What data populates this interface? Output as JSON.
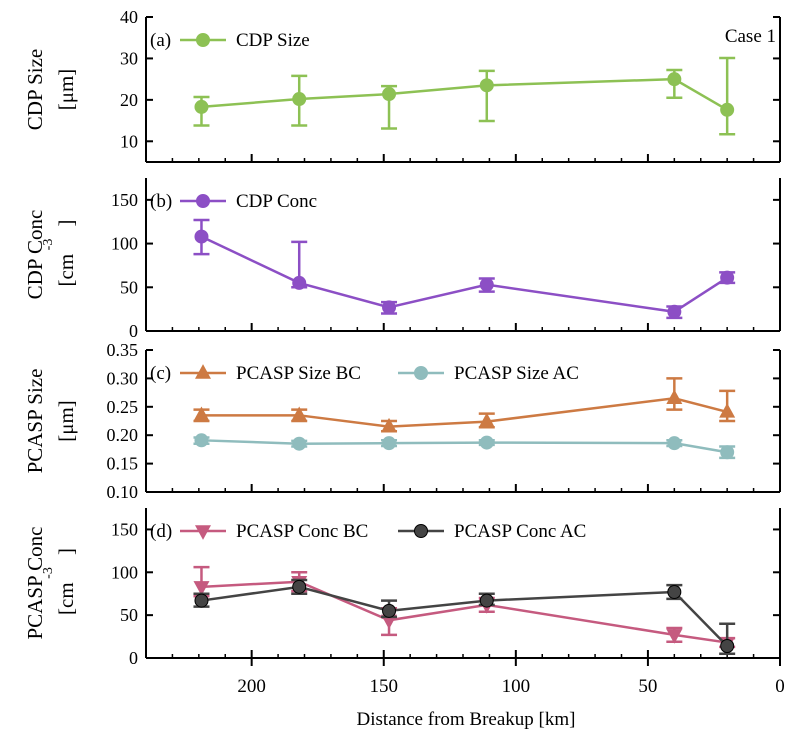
{
  "figure": {
    "case_label": "Case 1",
    "xlabel": "Distance from Breakup [km]",
    "x_ticks": [
      200,
      150,
      100,
      50,
      0
    ],
    "xlim": [
      240,
      0
    ]
  },
  "chart_data": [
    {
      "type": "line",
      "panel": "(a)",
      "ylabel_lines": [
        "CDP Size",
        "[μm]"
      ],
      "ylim": [
        5,
        40
      ],
      "y_ticks": [
        10,
        20,
        30,
        40
      ],
      "y_tick_labels": [
        "10",
        "20",
        "30",
        "40"
      ],
      "x": [
        219,
        182,
        148,
        111,
        40,
        20
      ],
      "series": [
        {
          "name": "CDP Size",
          "color": "#8dc154",
          "marker": "circle",
          "values": [
            18.3,
            20.2,
            21.4,
            23.5,
            25.0,
            17.6
          ],
          "err_low": [
            13.8,
            13.8,
            13.1,
            14.9,
            20.5,
            11.7
          ],
          "err_high": [
            20.7,
            25.8,
            23.3,
            27.0,
            27.2,
            30.1
          ]
        }
      ]
    },
    {
      "type": "line",
      "panel": "(b)",
      "ylabel_lines": [
        "CDP Conc",
        "[cm",
        "-3",
        "]"
      ],
      "ylim": [
        0,
        175
      ],
      "y_ticks": [
        0,
        50,
        100,
        150
      ],
      "y_tick_labels": [
        "0",
        "50",
        "100",
        "150"
      ],
      "x": [
        219,
        182,
        148,
        111,
        40,
        20
      ],
      "series": [
        {
          "name": "CDP Conc",
          "color": "#8c4fc5",
          "marker": "circle",
          "values": [
            108,
            55,
            27,
            53,
            22,
            61
          ],
          "err_low": [
            88,
            50,
            20,
            45,
            15,
            55
          ],
          "err_high": [
            127,
            102,
            33,
            60,
            28,
            67
          ]
        }
      ]
    },
    {
      "type": "line",
      "panel": "(c)",
      "ylabel_lines": [
        "PCASP Size",
        "[μm]"
      ],
      "ylim": [
        0.1,
        0.35
      ],
      "y_ticks": [
        0.1,
        0.15,
        0.2,
        0.25,
        0.3,
        0.35
      ],
      "y_tick_labels": [
        "0.10",
        "0.15",
        "0.20",
        "0.25",
        "0.30",
        "0.35"
      ],
      "x": [
        219,
        182,
        148,
        111,
        40,
        20
      ],
      "series": [
        {
          "name": "PCASP Size BC",
          "color": "#cd7a43",
          "marker": "triangle-up",
          "values": [
            0.235,
            0.235,
            0.215,
            0.224,
            0.265,
            0.241
          ],
          "err_low": [
            0.225,
            0.225,
            0.207,
            0.214,
            0.245,
            0.225
          ],
          "err_high": [
            0.245,
            0.245,
            0.225,
            0.238,
            0.3,
            0.278
          ]
        },
        {
          "name": "PCASP Size AC",
          "color": "#8fbcbd",
          "marker": "circle",
          "values": [
            0.191,
            0.185,
            0.186,
            0.187,
            0.186,
            0.17
          ],
          "err_low": [
            0.185,
            0.18,
            0.181,
            0.183,
            0.181,
            0.16
          ],
          "err_high": [
            0.196,
            0.19,
            0.191,
            0.191,
            0.191,
            0.18
          ]
        }
      ]
    },
    {
      "type": "line",
      "panel": "(d)",
      "ylabel_lines": [
        "PCASP Conc",
        "[cm",
        "-3",
        "]"
      ],
      "ylim": [
        0,
        175
      ],
      "y_ticks": [
        0,
        50,
        100,
        150
      ],
      "y_tick_labels": [
        "0",
        "50",
        "100",
        "150"
      ],
      "x": [
        219,
        182,
        148,
        111,
        40,
        20
      ],
      "series": [
        {
          "name": "PCASP Conc BC",
          "color": "#c55a7f",
          "marker": "triangle-down",
          "values": [
            83,
            89,
            44,
            62,
            27,
            18
          ],
          "err_low": [
            72,
            78,
            27,
            54,
            19,
            13
          ],
          "err_high": [
            106,
            100,
            58,
            70,
            35,
            23
          ]
        },
        {
          "name": "PCASP Conc AC",
          "color": "#444444",
          "marker": "circle",
          "values": [
            67,
            83,
            55,
            67,
            77,
            14
          ],
          "err_low": [
            60,
            75,
            48,
            62,
            69,
            5
          ],
          "err_high": [
            75,
            91,
            67,
            75,
            85,
            40
          ]
        }
      ]
    }
  ]
}
